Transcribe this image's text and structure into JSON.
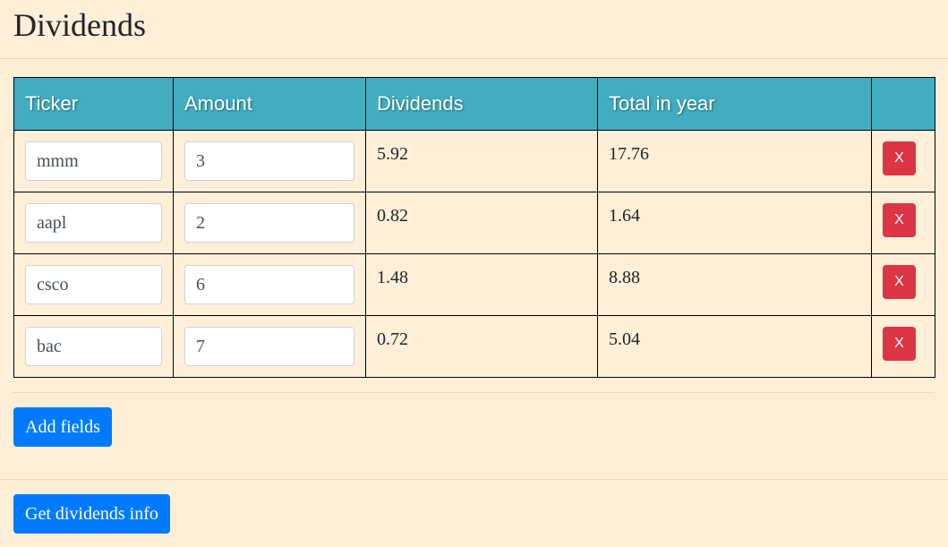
{
  "header": {
    "title": "Dividends"
  },
  "table": {
    "columns": [
      "Ticker",
      "Amount",
      "Dividends",
      "Total in year",
      ""
    ],
    "rows": [
      {
        "ticker": "mmm",
        "amount": "3",
        "dividends": "5.92",
        "total": "17.76",
        "delete_label": "X"
      },
      {
        "ticker": "aapl",
        "amount": "2",
        "dividends": "0.82",
        "total": "1.64",
        "delete_label": "X"
      },
      {
        "ticker": "csco",
        "amount": "6",
        "dividends": "1.48",
        "total": "8.88",
        "delete_label": "X"
      },
      {
        "ticker": "bac",
        "amount": "7",
        "dividends": "0.72",
        "total": "5.04",
        "delete_label": "X"
      }
    ]
  },
  "actions": {
    "add_fields_label": "Add fields",
    "get_info_label": "Get dividends info"
  },
  "colors": {
    "background": "#ffefd9",
    "header_bg": "#42adbf",
    "primary": "#007bff",
    "danger": "#dc3545"
  }
}
